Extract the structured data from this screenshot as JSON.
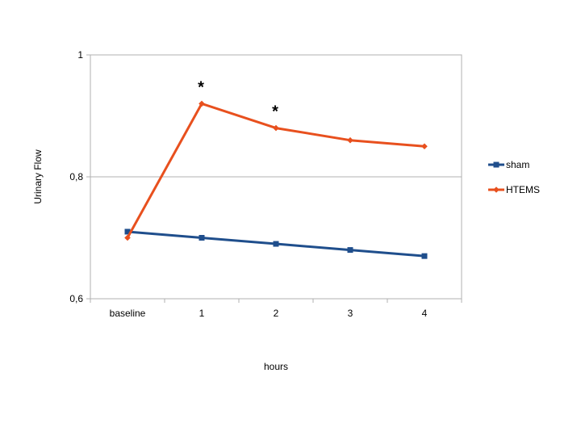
{
  "chart_data": {
    "type": "line",
    "title": "",
    "xlabel": "hours",
    "ylabel": "Urinary Flow",
    "categories": [
      "baseline",
      "1",
      "2",
      "3",
      "4"
    ],
    "ylim": [
      0.6,
      1.0
    ],
    "yticks": [
      0.6,
      0.8,
      1.0
    ],
    "ytick_labels": [
      "0,6",
      "0,8",
      "1"
    ],
    "grid": "horizontal",
    "legend_position": "right",
    "series": [
      {
        "name": "sham",
        "values": [
          0.71,
          0.7,
          0.69,
          0.68,
          0.67
        ],
        "color": "#1f4e8c",
        "marker": "square"
      },
      {
        "name": "HTEMS",
        "values": [
          0.7,
          0.92,
          0.88,
          0.86,
          0.85
        ],
        "color": "#e8501e",
        "marker": "diamond"
      }
    ],
    "annotations": [
      {
        "text": "*",
        "category": "1",
        "series": "HTEMS"
      },
      {
        "text": "*",
        "category": "2",
        "series": "HTEMS"
      }
    ]
  }
}
